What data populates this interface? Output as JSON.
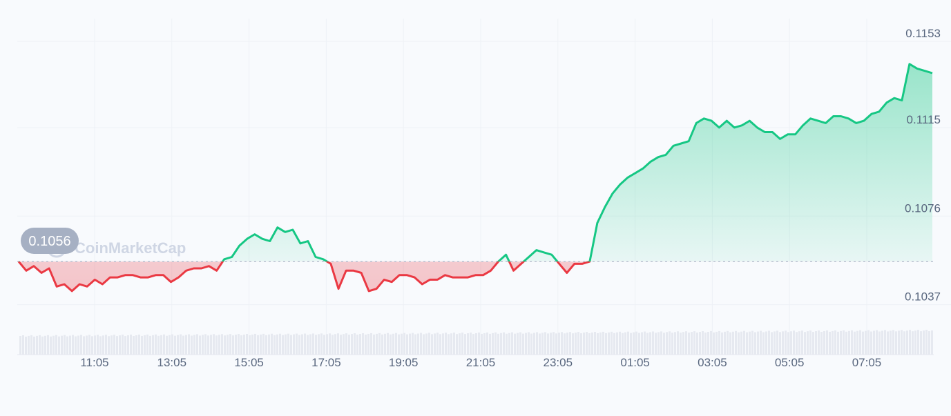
{
  "chart_data": {
    "type": "line",
    "watermark": "CoinMarketCap",
    "reference_price": 0.1056,
    "reference_label": "0.1056",
    "ylim": [
      0.1015,
      0.1163
    ],
    "y_ticks": [
      {
        "value": 0.1153,
        "label": "0.1153"
      },
      {
        "value": 0.1115,
        "label": "0.1115"
      },
      {
        "value": 0.1076,
        "label": "0.1076"
      },
      {
        "value": 0.1037,
        "label": "0.1037"
      }
    ],
    "x_ticks": [
      "11:05",
      "13:05",
      "15:05",
      "17:05",
      "19:05",
      "21:05",
      "23:05",
      "01:05",
      "03:05",
      "05:05",
      "07:05"
    ],
    "grid": true,
    "colors": {
      "above": "#16c784",
      "below": "#ea3943",
      "grid": "#eef1f6",
      "axis_text": "#58667e",
      "badge": "#a6b0c3",
      "volume": "#e6e9f0"
    },
    "series": [
      {
        "x": [
          0,
          0.2,
          0.4,
          0.6,
          0.8,
          1,
          1.2,
          1.4,
          1.6,
          1.8,
          2,
          2.2,
          2.4,
          2.6,
          2.8,
          3,
          3.2,
          3.4,
          3.6,
          3.8,
          4,
          4.2,
          4.4,
          4.6,
          4.8,
          5,
          5.2,
          5.4,
          5.6,
          5.8,
          6,
          6.2,
          6.4,
          6.6,
          6.8,
          7,
          7.2,
          7.4,
          7.6,
          7.8,
          8,
          8.2,
          8.4,
          8.6,
          8.8,
          9,
          9.2,
          9.4,
          9.6,
          9.8,
          10,
          10.2,
          10.4,
          10.6,
          10.8,
          11,
          11.2,
          11.4,
          11.6,
          11.8,
          12,
          12.2,
          12.4,
          12.6,
          12.8,
          13,
          13.2,
          13.4,
          13.6,
          13.8,
          14,
          14.2,
          14.4,
          14.6,
          14.8,
          15,
          15.2,
          15.4,
          15.6,
          15.8,
          16,
          16.2,
          16.4,
          16.6,
          16.8,
          17,
          17.2,
          17.4,
          17.6,
          17.8,
          18,
          18.2,
          18.4,
          18.6,
          18.8,
          19,
          19.2,
          19.4,
          19.6,
          19.8,
          20,
          20.2,
          20.4,
          20.6,
          20.8,
          21,
          21.2,
          21.4,
          21.6,
          21.8,
          22,
          22.2,
          22.4,
          22.6,
          22.8,
          23,
          23.2,
          23.4,
          23.6,
          23.8,
          24
        ],
        "y": [
          0.1056,
          0.1052,
          0.1054,
          0.1051,
          0.1053,
          0.1045,
          0.1046,
          0.1043,
          0.1046,
          0.1045,
          0.1048,
          0.1046,
          0.1049,
          0.1049,
          0.105,
          0.105,
          0.1049,
          0.1049,
          0.105,
          0.105,
          0.1047,
          0.1049,
          0.1052,
          0.1053,
          0.1053,
          0.1054,
          0.1052,
          0.1057,
          0.1058,
          0.1063,
          0.1066,
          0.1068,
          0.1066,
          0.1065,
          0.1071,
          0.1069,
          0.107,
          0.1064,
          0.1065,
          0.1058,
          0.1057,
          0.1055,
          0.1044,
          0.1052,
          0.1052,
          0.1051,
          0.1043,
          0.1044,
          0.1048,
          0.1047,
          0.105,
          0.105,
          0.1049,
          0.1046,
          0.1048,
          0.1048,
          0.105,
          0.1049,
          0.1049,
          0.1049,
          0.105,
          0.105,
          0.1052,
          0.1056,
          0.1059,
          0.1052,
          0.1055,
          0.1058,
          0.1061,
          0.106,
          0.1059,
          0.1055,
          0.1051,
          0.1055,
          0.1055,
          0.1056,
          0.1073,
          0.108,
          0.1086,
          0.109,
          0.1093,
          0.1095,
          0.1097,
          0.11,
          0.1102,
          0.1103,
          0.1107,
          0.1108,
          0.1109,
          0.1117,
          0.1119,
          0.1118,
          0.1115,
          0.1118,
          0.1115,
          0.1116,
          0.1118,
          0.1115,
          0.1113,
          0.1113,
          0.111,
          0.1112,
          0.1112,
          0.1116,
          0.1119,
          0.1118,
          0.1117,
          0.112,
          0.112,
          0.1119,
          0.1117,
          0.1118,
          0.1121,
          0.1122,
          0.1126,
          0.1128,
          0.1127,
          0.1143,
          0.1141,
          0.114,
          0.1139
        ]
      }
    ]
  }
}
